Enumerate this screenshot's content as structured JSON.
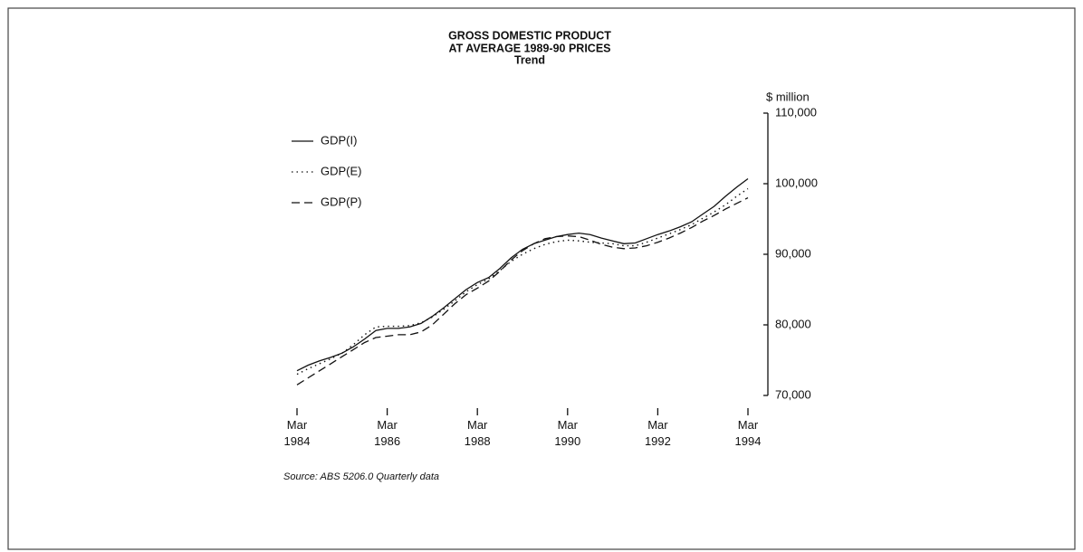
{
  "chart_data": {
    "type": "line",
    "title": "GROSS DOMESTIC PRODUCT",
    "subtitle": "AT AVERAGE 1989-90 PRICES",
    "subtitle2": "Trend",
    "y_label": "$ million",
    "source": "Source: ABS 5206.0 Quarterly data",
    "x": [
      "Mar 1984",
      "Jun 1984",
      "Sep 1984",
      "Dec 1984",
      "Mar 1985",
      "Jun 1985",
      "Sep 1985",
      "Dec 1985",
      "Mar 1986",
      "Jun 1986",
      "Sep 1986",
      "Dec 1986",
      "Mar 1987",
      "Jun 1987",
      "Sep 1987",
      "Dec 1987",
      "Mar 1988",
      "Jun 1988",
      "Sep 1988",
      "Dec 1988",
      "Mar 1989",
      "Jun 1989",
      "Sep 1989",
      "Dec 1989",
      "Mar 1990",
      "Jun 1990",
      "Sep 1990",
      "Dec 1990",
      "Mar 1991",
      "Jun 1991",
      "Sep 1991",
      "Dec 1991",
      "Mar 1992",
      "Jun 1992",
      "Sep 1992",
      "Dec 1992",
      "Mar 1993",
      "Jun 1993",
      "Sep 1993",
      "Dec 1993",
      "Mar 1994"
    ],
    "xticks": [
      "Mar 1984",
      "Mar 1986",
      "Mar 1988",
      "Mar 1990",
      "Mar 1992",
      "Mar 1994"
    ],
    "ylim": [
      70000,
      110000
    ],
    "yticks": [
      {
        "value": 70000,
        "label": "70,000"
      },
      {
        "value": 80000,
        "label": "80,000"
      },
      {
        "value": 90000,
        "label": "90,000"
      },
      {
        "value": 100000,
        "label": "100,000"
      },
      {
        "value": 110000,
        "label": "110,000"
      }
    ],
    "series": [
      {
        "name": "GDP(I)",
        "color": "#111111",
        "dash": "solid",
        "values": [
          73500,
          74300,
          74900,
          75400,
          76000,
          76900,
          78000,
          79200,
          79500,
          79500,
          79700,
          80200,
          81200,
          82400,
          83700,
          85000,
          86000,
          86700,
          88000,
          89500,
          90700,
          91500,
          92000,
          92500,
          92800,
          93000,
          92800,
          92300,
          91900,
          91500,
          91600,
          92200,
          92800,
          93300,
          93900,
          94600,
          95700,
          96800,
          98200,
          99500,
          100700
        ]
      },
      {
        "name": "GDP(E)",
        "color": "#111111",
        "dash": "dotted",
        "values": [
          73000,
          73800,
          74500,
          75200,
          76000,
          77200,
          78600,
          79700,
          79800,
          79800,
          79900,
          80300,
          81100,
          82200,
          83400,
          84700,
          85700,
          86500,
          87700,
          89000,
          90000,
          90800,
          91400,
          91800,
          92000,
          91900,
          91700,
          91600,
          91500,
          91200,
          91200,
          91700,
          92300,
          92900,
          93500,
          94200,
          95100,
          96000,
          97000,
          98200,
          99300
        ]
      },
      {
        "name": "GDP(P)",
        "color": "#111111",
        "dash": "dashed",
        "values": [
          71500,
          72500,
          73500,
          74500,
          75500,
          76500,
          77500,
          78200,
          78400,
          78600,
          78600,
          79000,
          80000,
          81500,
          83000,
          84300,
          85200,
          86200,
          87600,
          89200,
          90500,
          91500,
          92200,
          92500,
          92600,
          92500,
          92000,
          91400,
          91000,
          90800,
          90900,
          91200,
          91700,
          92300,
          93000,
          93800,
          94700,
          95500,
          96400,
          97200,
          98000
        ]
      }
    ]
  }
}
